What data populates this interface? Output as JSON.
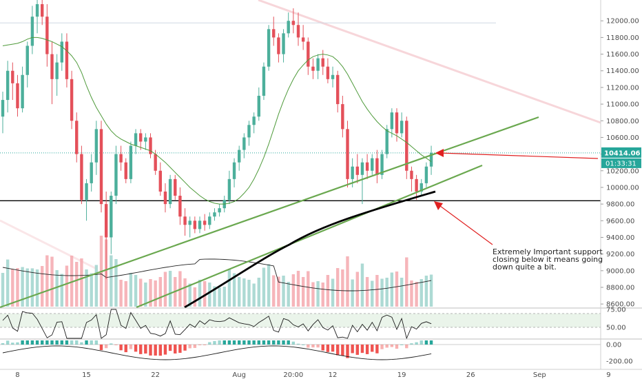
{
  "chart_data": {
    "type": "candlestick",
    "y_axis": {
      "range": [
        8560,
        12250
      ],
      "ticks": [
        "12000.00",
        "11800.00",
        "11600.00",
        "11400.00",
        "11200.00",
        "11000.00",
        "10800.00",
        "10600.00",
        "10400.00",
        "10200.00",
        "10000.00",
        "9800.00",
        "9600.00",
        "9400.00",
        "9200.00",
        "9000.00",
        "8800.00",
        "8600.00"
      ]
    },
    "x_axis": {
      "labels": [
        {
          "text": "8",
          "index": 3
        },
        {
          "text": "15",
          "index": 17
        },
        {
          "text": "22",
          "index": 31
        },
        {
          "text": "Aug",
          "index": 48
        },
        {
          "text": "20:00",
          "index": 59
        },
        {
          "text": "12",
          "index": 67
        },
        {
          "text": "19",
          "index": 81
        },
        {
          "text": "26",
          "index": 95
        },
        {
          "text": "Sep",
          "index": 109
        },
        {
          "text": "9",
          "index": 123
        }
      ]
    },
    "last_price": {
      "value": 10414.06,
      "label": "10414.06",
      "countdown": "01:33:31"
    },
    "horizontal_lines": [
      {
        "value": 9840,
        "color": "#000000"
      },
      {
        "value": 11975,
        "color": "#cfd8e3"
      }
    ],
    "indicator1_ticks": [
      "75.00",
      "50.00"
    ],
    "indicator2_ticks": [
      "0.00",
      "-200.00"
    ],
    "annotation": {
      "lines": [
        "Extremely Important support",
        "closing below it means going",
        "down quite a bit."
      ]
    },
    "colors": {
      "up": "#4caf9b",
      "down": "#e4505a",
      "sma": "#4e9a3a",
      "trend": "#6aa84f",
      "arrow": "#e02020"
    },
    "candles": [
      [
        10850,
        11150,
        10650,
        11050
      ],
      [
        11050,
        11520,
        10900,
        11400
      ],
      [
        11400,
        11500,
        11050,
        11250
      ],
      [
        11250,
        11350,
        10850,
        10950
      ],
      [
        10950,
        11450,
        10900,
        11350
      ],
      [
        11350,
        11750,
        11200,
        11700
      ],
      [
        11700,
        12180,
        11600,
        12050
      ],
      [
        12050,
        12250,
        11850,
        12200
      ],
      [
        12200,
        12450,
        11950,
        12050
      ],
      [
        12050,
        12200,
        11450,
        11600
      ],
      [
        11600,
        11750,
        11000,
        11300
      ],
      [
        11300,
        11600,
        11100,
        11500
      ],
      [
        11500,
        11850,
        11400,
        11750
      ],
      [
        11750,
        11850,
        11200,
        11300
      ],
      [
        11300,
        11400,
        10700,
        10800
      ],
      [
        10800,
        10900,
        10300,
        10400
      ],
      [
        10400,
        10500,
        9800,
        9850
      ],
      [
        9850,
        10100,
        9600,
        10050
      ],
      [
        10050,
        10400,
        9950,
        10300
      ],
      [
        10300,
        10800,
        10150,
        10700
      ],
      [
        10700,
        10800,
        9700,
        9800
      ],
      [
        9800,
        9950,
        8900,
        9400
      ],
      [
        9400,
        9950,
        9200,
        9900
      ],
      [
        9900,
        10500,
        9800,
        10400
      ],
      [
        10400,
        10500,
        10200,
        10300
      ],
      [
        10300,
        10350,
        10050,
        10100
      ],
      [
        10100,
        10550,
        10050,
        10500
      ],
      [
        10500,
        10700,
        10400,
        10650
      ],
      [
        10650,
        10700,
        10450,
        10550
      ],
      [
        10550,
        10650,
        10450,
        10600
      ],
      [
        10600,
        10650,
        10350,
        10400
      ],
      [
        10400,
        10450,
        10150,
        10200
      ],
      [
        10200,
        10300,
        9900,
        9950
      ],
      [
        9950,
        10050,
        9700,
        9800
      ],
      [
        9800,
        10150,
        9750,
        10100
      ],
      [
        10100,
        10150,
        9850,
        9900
      ],
      [
        9900,
        10000,
        9550,
        9650
      ],
      [
        9650,
        9750,
        9420,
        9550
      ],
      [
        9550,
        9650,
        9400,
        9600
      ],
      [
        9600,
        9650,
        9450,
        9500
      ],
      [
        9500,
        9650,
        9450,
        9600
      ],
      [
        9600,
        9680,
        9480,
        9550
      ],
      [
        9550,
        9700,
        9500,
        9650
      ],
      [
        9650,
        9750,
        9600,
        9700
      ],
      [
        9700,
        9800,
        9650,
        9750
      ],
      [
        9750,
        9900,
        9700,
        9850
      ],
      [
        9850,
        10200,
        9800,
        10100
      ],
      [
        10100,
        10350,
        10000,
        10300
      ],
      [
        10300,
        10500,
        10200,
        10450
      ],
      [
        10450,
        10650,
        10350,
        10600
      ],
      [
        10600,
        10800,
        10500,
        10750
      ],
      [
        10750,
        10900,
        10650,
        10850
      ],
      [
        10850,
        11200,
        10800,
        11100
      ],
      [
        11100,
        11500,
        11050,
        11450
      ],
      [
        11450,
        11950,
        11400,
        11900
      ],
      [
        11900,
        12050,
        11700,
        11800
      ],
      [
        11800,
        11850,
        11500,
        11600
      ],
      [
        11600,
        11900,
        11500,
        11850
      ],
      [
        11850,
        12100,
        11800,
        12000
      ],
      [
        12000,
        12150,
        11850,
        11950
      ],
      [
        11950,
        12100,
        11700,
        11800
      ],
      [
        11800,
        11950,
        11650,
        11750
      ],
      [
        11750,
        11800,
        11350,
        11450
      ],
      [
        11450,
        11550,
        11300,
        11400
      ],
      [
        11400,
        11600,
        11300,
        11550
      ],
      [
        11550,
        11650,
        11350,
        11450
      ],
      [
        11450,
        11550,
        11250,
        11300
      ],
      [
        11300,
        11450,
        11200,
        11350
      ],
      [
        11350,
        11400,
        10900,
        11000
      ],
      [
        11000,
        11100,
        10600,
        10700
      ],
      [
        10700,
        10800,
        10000,
        10100
      ],
      [
        10100,
        10350,
        10000,
        10250
      ],
      [
        10250,
        10400,
        10050,
        10150
      ],
      [
        10150,
        10350,
        9800,
        10300
      ],
      [
        10300,
        10400,
        10100,
        10200
      ],
      [
        10200,
        10400,
        10150,
        10350
      ],
      [
        10350,
        10450,
        10050,
        10150
      ],
      [
        10150,
        10450,
        10100,
        10400
      ],
      [
        10400,
        10750,
        10350,
        10700
      ],
      [
        10700,
        10950,
        10600,
        10900
      ],
      [
        10900,
        10950,
        10550,
        10650
      ],
      [
        10650,
        10900,
        10600,
        10800
      ],
      [
        10800,
        10850,
        10100,
        10200
      ],
      [
        10200,
        10250,
        9950,
        10100
      ],
      [
        10100,
        10150,
        9850,
        9950
      ],
      [
        9950,
        10100,
        9900,
        10050
      ],
      [
        10050,
        10300,
        10000,
        10250
      ],
      [
        10250,
        10500,
        10150,
        10414.06
      ]
    ],
    "sma": [
      11700,
      11710,
      11720,
      11730,
      11750,
      11780,
      11800,
      11800,
      11790,
      11770,
      11750,
      11720,
      11690,
      11640,
      11580,
      11500,
      11380,
      11220,
      11080,
      10960,
      10860,
      10760,
      10680,
      10620,
      10580,
      10550,
      10520,
      10500,
      10480,
      10460,
      10440,
      10400,
      10350,
      10300,
      10240,
      10180,
      10120,
      10060,
      10000,
      9950,
      9900,
      9860,
      9830,
      9810,
      9800,
      9800,
      9810,
      9830,
      9870,
      9930,
      10000,
      10100,
      10220,
      10360,
      10520,
      10700,
      10880,
      11040,
      11180,
      11300,
      11400,
      11470,
      11530,
      11570,
      11590,
      11600,
      11590,
      11570,
      11520,
      11450,
      11360,
      11250,
      11140,
      11030,
      10940,
      10860,
      10790,
      10730,
      10680,
      10650,
      10620,
      10580,
      10540,
      10490,
      10440,
      10390,
      10350,
      10310
    ]
  }
}
